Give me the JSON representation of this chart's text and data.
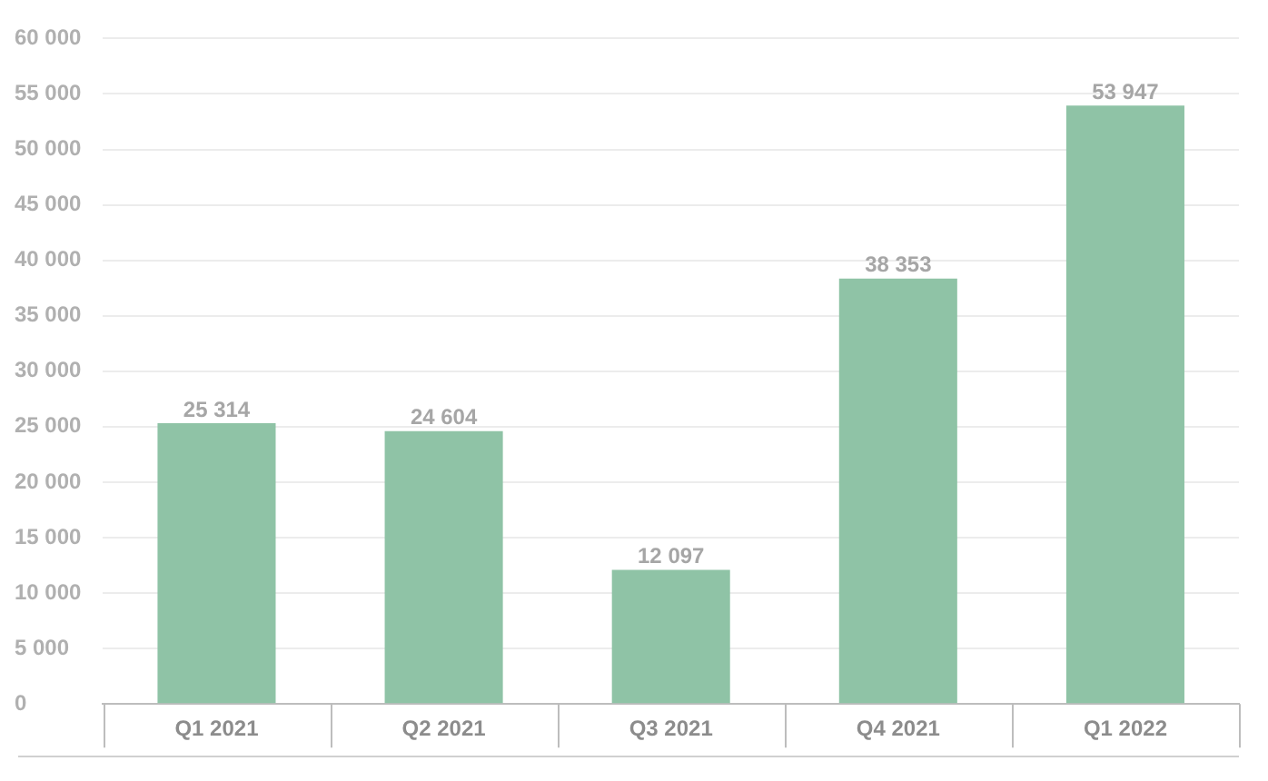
{
  "chart_data": {
    "type": "bar",
    "categories": [
      "Q1 2021",
      "Q2 2021",
      "Q3 2021",
      "Q4 2021",
      "Q1 2022"
    ],
    "values": [
      25314,
      24604,
      12097,
      38353,
      53947
    ],
    "value_labels": [
      "25 314",
      "24 604",
      "12 097",
      "38 353",
      "53 947"
    ],
    "color": "#8fc3a6",
    "ylim": [
      0,
      60000
    ],
    "yticks": [
      {
        "value": 0,
        "label": "0"
      },
      {
        "value": 5000,
        "label": "5 000"
      },
      {
        "value": 10000,
        "label": "10 000"
      },
      {
        "value": 15000,
        "label": "15 000"
      },
      {
        "value": 20000,
        "label": "20 000"
      },
      {
        "value": 25000,
        "label": "25 000"
      },
      {
        "value": 30000,
        "label": "30 000"
      },
      {
        "value": 35000,
        "label": "35 000"
      },
      {
        "value": 40000,
        "label": "40 000"
      },
      {
        "value": 45000,
        "label": "45 000"
      },
      {
        "value": 50000,
        "label": "50 000"
      },
      {
        "value": 55000,
        "label": "55 000"
      },
      {
        "value": 60000,
        "label": "60 000"
      }
    ],
    "grid": "y",
    "legend": false
  }
}
